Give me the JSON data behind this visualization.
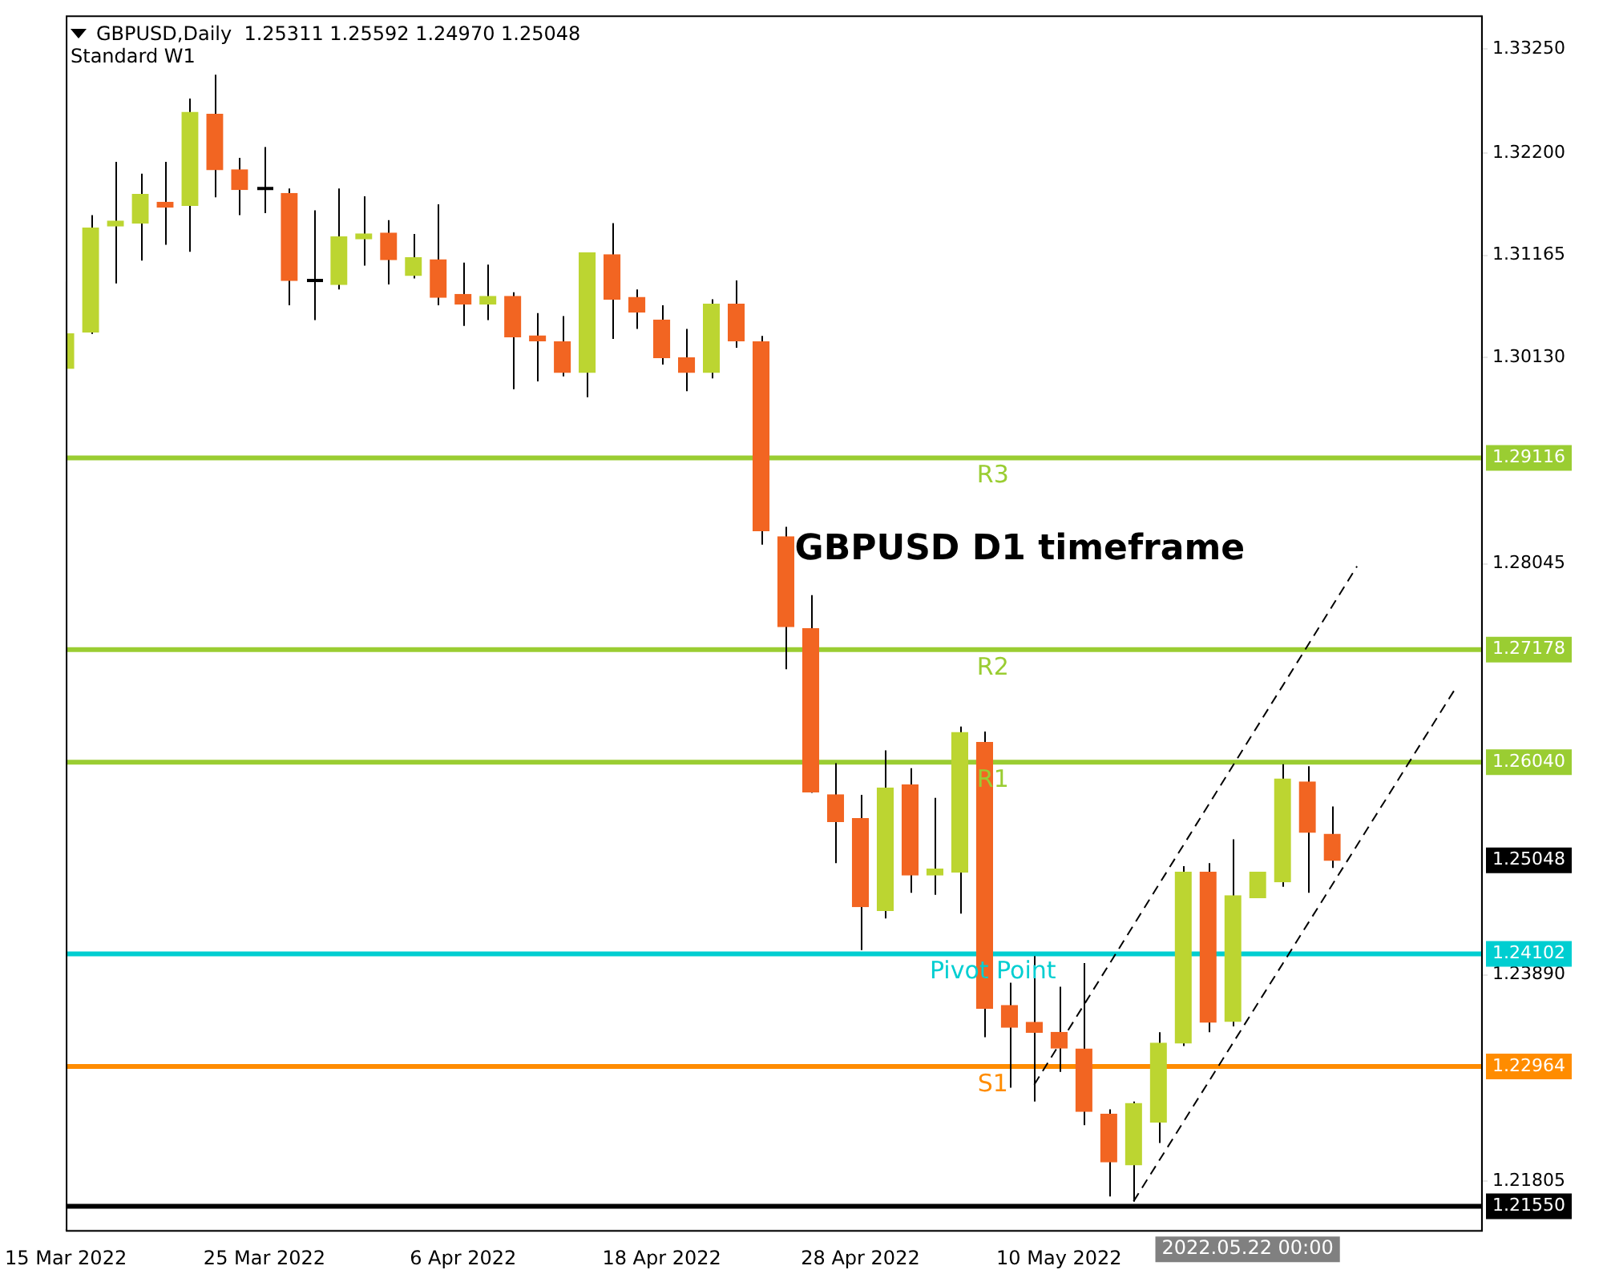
{
  "chart_data": {
    "type": "candlestick",
    "title": "GBPUSD,Daily  1.25311 1.25592 1.24970 1.25048",
    "subtitle": "Standard W1",
    "categories": [
      "15 Mar 2022",
      null,
      null,
      null,
      null,
      null,
      null,
      null,
      "25 Mar 2022",
      null,
      null,
      null,
      null,
      null,
      null,
      null,
      "6 Apr 2022",
      null,
      null,
      null,
      null,
      null,
      null,
      null,
      "18 Apr 2022",
      null,
      null,
      null,
      null,
      null,
      null,
      null,
      "28 Apr 2022",
      null,
      null,
      null,
      null,
      null,
      null,
      null,
      "10 May 2022",
      null,
      null,
      null,
      null,
      null,
      null,
      null,
      null,
      null,
      null,
      null,
      null,
      null,
      null,
      null,
      null,
      null
    ],
    "ohlc": [
      [
        1.3002,
        1.309,
        1.3002,
        1.3037
      ],
      [
        1.3039,
        1.3157,
        1.3037,
        1.3144
      ],
      [
        1.3146,
        1.3211,
        1.3088,
        1.3151
      ],
      [
        1.3149,
        1.3199,
        1.3111,
        1.3178
      ],
      [
        1.317,
        1.3211,
        1.3127,
        1.3165
      ],
      [
        1.3167,
        1.3275,
        1.312,
        1.3261
      ],
      [
        1.3259,
        1.3299,
        1.3175,
        1.3203
      ],
      [
        1.3203,
        1.3215,
        1.3157,
        1.3183
      ],
      [
        1.3184,
        1.3226,
        1.3159,
        1.3184
      ],
      [
        1.3179,
        1.3184,
        1.3066,
        1.3091
      ],
      [
        1.3091,
        1.3162,
        1.3051,
        1.3091
      ],
      [
        1.3087,
        1.3184,
        1.3082,
        1.3135
      ],
      [
        1.3133,
        1.3176,
        1.3106,
        1.3138
      ],
      [
        1.3139,
        1.3152,
        1.3087,
        1.3112
      ],
      [
        1.3096,
        1.3138,
        1.3093,
        1.3114
      ],
      [
        1.3112,
        1.3168,
        1.3066,
        1.3074
      ],
      [
        1.3077,
        1.3109,
        1.3045,
        1.3067
      ],
      [
        1.3067,
        1.3107,
        1.3051,
        1.3075
      ],
      [
        1.3075,
        1.3079,
        1.2981,
        1.3034
      ],
      [
        1.3035,
        1.3058,
        1.2989,
        1.303
      ],
      [
        1.3029,
        1.3055,
        1.2994,
        1.2998
      ],
      [
        1.2998,
        1.3119,
        1.2973,
        1.3119
      ],
      [
        1.3117,
        1.3149,
        1.3032,
        1.3072
      ],
      [
        1.3074,
        1.3082,
        1.3042,
        1.3059
      ],
      [
        1.3051,
        1.3066,
        1.3006,
        1.3013
      ],
      [
        1.3013,
        1.3042,
        1.2979,
        1.2998
      ],
      [
        1.2998,
        1.3072,
        1.2992,
        1.3067
      ],
      [
        1.3067,
        1.3091,
        1.3023,
        1.303
      ],
      [
        1.3029,
        1.3035,
        1.2824,
        1.2838
      ],
      [
        1.2832,
        1.2842,
        1.2698,
        1.2741
      ],
      [
        1.2739,
        1.2773,
        1.2573,
        1.2574
      ],
      [
        1.2571,
        1.2603,
        1.2502,
        1.2544
      ],
      [
        1.2547,
        1.2571,
        1.2414,
        1.2458
      ],
      [
        1.2454,
        1.2616,
        1.2446,
        1.2578
      ],
      [
        1.2581,
        1.2598,
        1.2472,
        1.249
      ],
      [
        1.249,
        1.2568,
        1.247,
        1.2496
      ],
      [
        1.2493,
        1.264,
        1.2451,
        1.2634
      ],
      [
        1.2624,
        1.2635,
        1.2326,
        1.2355
      ],
      [
        1.2358,
        1.2381,
        1.2275,
        1.2336
      ],
      [
        1.2341,
        1.2408,
        1.2261,
        1.2331
      ],
      [
        1.2331,
        1.2377,
        1.2291,
        1.2315
      ],
      [
        1.2314,
        1.2401,
        1.2237,
        1.2251
      ],
      [
        1.2248,
        1.2253,
        1.2165,
        1.22
      ],
      [
        1.2197,
        1.2261,
        1.216,
        1.2259
      ],
      [
        1.224,
        1.2331,
        1.2219,
        1.232
      ],
      [
        1.232,
        1.2499,
        1.2317,
        1.2493
      ],
      [
        1.2493,
        1.2502,
        1.2331,
        1.2341
      ],
      [
        1.2342,
        1.2526,
        1.2337,
        1.2469
      ],
      [
        1.2467,
        1.2493,
        1.2467,
        1.2493
      ],
      [
        1.2483,
        1.2602,
        1.2478,
        1.2587
      ],
      [
        1.2584,
        1.26,
        1.2472,
        1.2533
      ],
      [
        1.25311,
        1.25592,
        1.2497,
        1.25048
      ],
      null,
      null,
      null,
      null,
      null,
      null
    ],
    "colors": [
      "#bcd531",
      "#bcd531",
      "#bcd531",
      "#bcd531",
      "#f26522",
      "#bcd531",
      "#f26522",
      "#f26522",
      "#000000",
      "#f26522",
      "#000000",
      "#bcd531",
      "#bcd531",
      "#f26522",
      "#bcd531",
      "#f26522",
      "#f26522",
      "#bcd531",
      "#f26522",
      "#f26522",
      "#f26522",
      "#bcd531",
      "#f26522",
      "#f26522",
      "#f26522",
      "#f26522",
      "#bcd531",
      "#f26522",
      "#f26522",
      "#f26522",
      "#f26522",
      "#f26522",
      "#f26522",
      "#bcd531",
      "#f26522",
      "#bcd531",
      "#bcd531",
      "#f26522",
      "#f26522",
      "#f26522",
      "#f26522",
      "#f26522",
      "#f26522",
      "#bcd531",
      "#bcd531",
      "#bcd531",
      "#f26522",
      "#bcd531",
      "#bcd531",
      "#bcd531",
      "#f26522",
      "#f26522",
      null,
      null,
      null,
      null,
      null,
      null
    ],
    "series": [
      {
        "type": "line",
        "color": "#000000",
        "line_style": "dashed",
        "values": [
          null,
          null,
          null,
          null,
          null,
          null,
          null,
          null,
          null,
          null,
          null,
          null,
          null,
          null,
          null,
          null,
          null,
          null,
          null,
          null,
          null,
          null,
          null,
          null,
          null,
          null,
          null,
          null,
          null,
          null,
          null,
          null,
          null,
          null,
          null,
          null,
          null,
          null,
          null,
          1.2278,
          null,
          null,
          null,
          null,
          null,
          null,
          null,
          null,
          null,
          null,
          null,
          null,
          1.2802,
          null,
          null,
          null,
          null,
          null
        ]
      },
      {
        "type": "line",
        "color": "#000000",
        "line_style": "dashed",
        "values": [
          null,
          null,
          null,
          null,
          null,
          null,
          null,
          null,
          null,
          null,
          null,
          null,
          null,
          null,
          null,
          null,
          null,
          null,
          null,
          null,
          null,
          null,
          null,
          null,
          null,
          null,
          null,
          null,
          null,
          null,
          null,
          null,
          null,
          null,
          null,
          null,
          null,
          null,
          null,
          null,
          null,
          null,
          null,
          1.216,
          null,
          null,
          null,
          null,
          null,
          null,
          null,
          null,
          null,
          null,
          null,
          null,
          1.268,
          null
        ]
      }
    ],
    "ylim": [
      1.2131,
      1.3359
    ],
    "yticks": [
      {
        "value": 1.3325,
        "label": "1.33250"
      },
      {
        "value": 1.322,
        "label": "1.32200"
      },
      {
        "value": 1.31165,
        "label": "1.31165"
      },
      {
        "value": 1.3013,
        "label": "1.30130"
      },
      {
        "value": 1.28045,
        "label": "1.28045"
      },
      {
        "value": 1.2389,
        "label": "1.23890"
      },
      {
        "value": 1.21805,
        "label": "1.21805"
      }
    ],
    "ref_lines": [
      {
        "axis": "y",
        "value": 1.29116,
        "label": "R3",
        "color": "#9acd32"
      },
      {
        "axis": "y",
        "value": 1.27178,
        "label": "R2",
        "color": "#9acd32"
      },
      {
        "axis": "y",
        "value": 1.2604,
        "label": "R1",
        "color": "#9acd32"
      },
      {
        "axis": "y",
        "value": 1.24102,
        "label": "Pivot Point",
        "color": "#00ced1"
      },
      {
        "axis": "y",
        "value": 1.22964,
        "label": "S1",
        "color": "#ff8c00"
      },
      {
        "axis": "y",
        "value": 1.2155,
        "label": null,
        "color": "#000000"
      }
    ],
    "annotations": [
      "GBPUSD D1 timeframe",
      "2022.05.22 00:00",
      "1.25048",
      "1.29116",
      "1.27178",
      "1.26040",
      "1.24102",
      "1.22964",
      "1.21550"
    ]
  }
}
